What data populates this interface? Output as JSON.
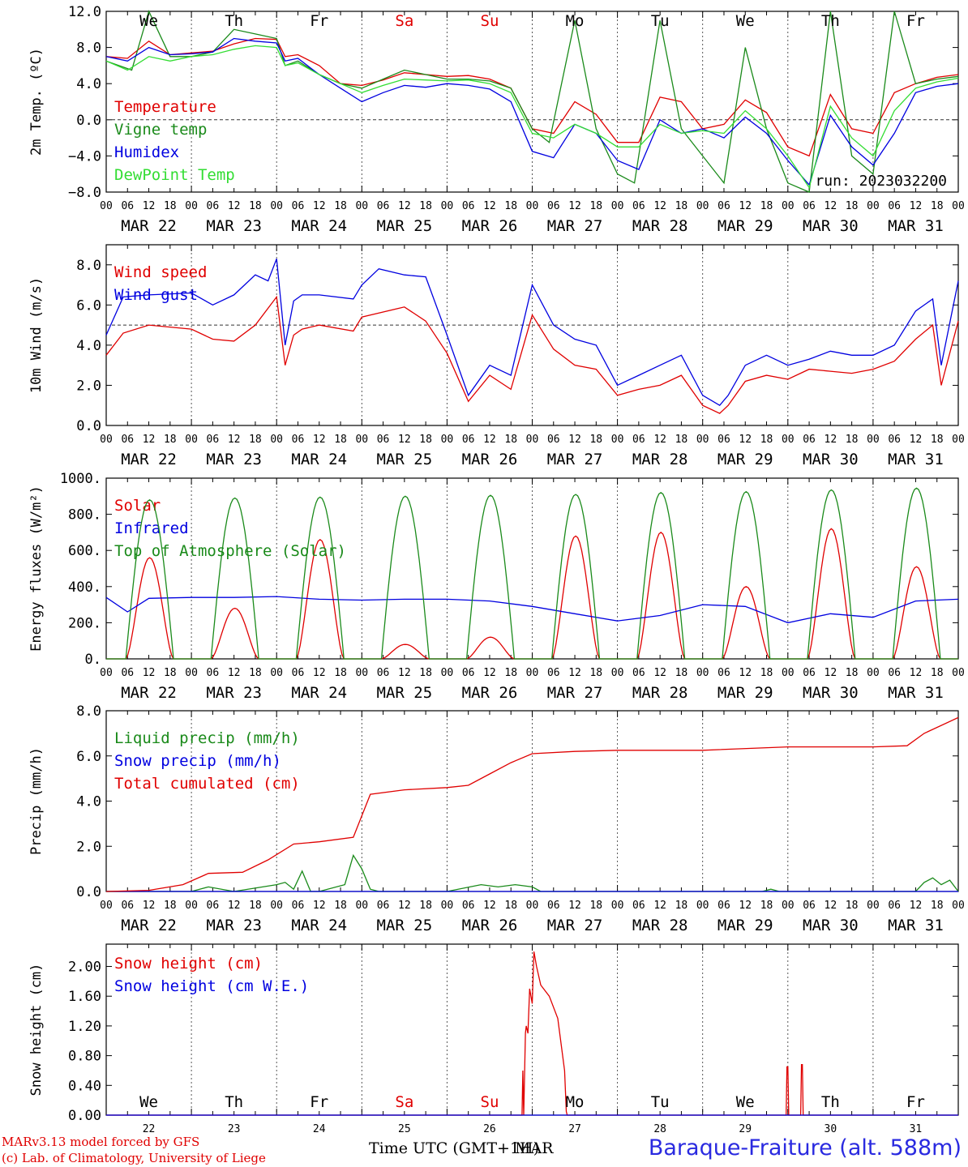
{
  "colors": {
    "red": "#e00000",
    "green": "#1a8a1a",
    "blue": "#0000e0",
    "lightgreen": "#33dd33",
    "weekend": "#e00000"
  },
  "days": [
    {
      "abbr": "We",
      "date": "MAR 22",
      "num": "22",
      "weekend": false
    },
    {
      "abbr": "Th",
      "date": "MAR 23",
      "num": "23",
      "weekend": false
    },
    {
      "abbr": "Fr",
      "date": "MAR 24",
      "num": "24",
      "weekend": false
    },
    {
      "abbr": "Sa",
      "date": "MAR 25",
      "num": "25",
      "weekend": true
    },
    {
      "abbr": "Su",
      "date": "MAR 26",
      "num": "26",
      "weekend": true
    },
    {
      "abbr": "Mo",
      "date": "MAR 27",
      "num": "27",
      "weekend": false
    },
    {
      "abbr": "Tu",
      "date": "MAR 28",
      "num": "28",
      "weekend": false
    },
    {
      "abbr": "We",
      "date": "MAR 29",
      "num": "29",
      "weekend": false
    },
    {
      "abbr": "Th",
      "date": "MAR 30",
      "num": "30",
      "weekend": false
    },
    {
      "abbr": "Fr",
      "date": "MAR 31",
      "num": "31",
      "weekend": false
    }
  ],
  "hour_ticks": [
    "00",
    "06",
    "12",
    "18"
  ],
  "chart_data": [
    {
      "type": "line",
      "ylabel": "2m Temp. (ºC)",
      "ylim": [
        -8,
        12
      ],
      "yticks": [
        "-8.0",
        "-4.0",
        "0.0",
        "4.0",
        "8.0",
        "12.0"
      ],
      "ref_line": 0,
      "x_unit": "days since MAR 22 00 UTC",
      "annotation": "run: 2023032200",
      "series": [
        {
          "name": "Temperature",
          "color": "red",
          "x": [
            0,
            0.25,
            0.5,
            0.75,
            1,
            1.25,
            1.5,
            1.75,
            2,
            2.1,
            2.25,
            2.5,
            2.75,
            3,
            3.25,
            3.5,
            3.75,
            4,
            4.25,
            4.5,
            4.75,
            5,
            5.25,
            5.5,
            5.75,
            6,
            6.25,
            6.5,
            6.75,
            7,
            7.25,
            7.5,
            7.75,
            8,
            8.25,
            8.5,
            8.75,
            9,
            9.25,
            9.5,
            9.75,
            10
          ],
          "y": [
            7,
            6.8,
            8.7,
            7.2,
            7.4,
            7.6,
            8.4,
            9,
            8.9,
            7,
            7.2,
            6,
            4,
            3.8,
            4.4,
            5.2,
            5,
            4.8,
            4.9,
            4.5,
            3.5,
            -1,
            -1.5,
            2,
            0.6,
            -2.5,
            -2.5,
            2.5,
            2,
            -1,
            -0.5,
            2.2,
            0.8,
            -3,
            -4,
            2.8,
            -1,
            -1.5,
            3,
            4,
            4.7,
            5
          ]
        },
        {
          "name": "Vigne temp",
          "color": "green",
          "x": [
            0,
            0.3,
            0.5,
            0.75,
            1,
            1.25,
            1.5,
            1.75,
            2,
            2.1,
            2.25,
            2.5,
            2.75,
            3,
            3.25,
            3.5,
            3.75,
            4,
            4.25,
            4.5,
            4.75,
            5,
            5.2,
            5.5,
            5.75,
            6,
            6.2,
            6.5,
            6.75,
            7,
            7.25,
            7.5,
            7.75,
            8,
            8.25,
            8.5,
            8.75,
            9,
            9.25,
            9.5,
            9.75,
            10
          ],
          "y": [
            6.5,
            5.5,
            12,
            7,
            7,
            7.5,
            10,
            9.5,
            9,
            6,
            6.5,
            5,
            4,
            3.5,
            4.5,
            5.5,
            5,
            4.5,
            4.5,
            4.3,
            3.5,
            -1,
            -2.5,
            11,
            -1,
            -6,
            -7,
            11,
            -1,
            -4,
            -7,
            8,
            -1,
            -7,
            -8,
            12,
            -4,
            -6,
            12,
            4,
            4.5,
            4.8
          ]
        },
        {
          "name": "Humidex",
          "color": "blue",
          "x": [
            0,
            0.25,
            0.5,
            0.75,
            1,
            1.25,
            1.5,
            1.75,
            2,
            2.1,
            2.25,
            2.5,
            2.75,
            3,
            3.25,
            3.5,
            3.75,
            4,
            4.25,
            4.5,
            4.75,
            5,
            5.25,
            5.5,
            5.75,
            6,
            6.25,
            6.5,
            6.75,
            7,
            7.25,
            7.5,
            7.75,
            8,
            8.25,
            8.5,
            8.75,
            9,
            9.25,
            9.5,
            9.75,
            10
          ],
          "y": [
            7,
            6.5,
            8,
            7.2,
            7.3,
            7.5,
            9,
            8.7,
            8.5,
            6.5,
            6.8,
            5,
            3.5,
            2,
            3,
            3.8,
            3.6,
            4,
            3.8,
            3.4,
            2,
            -3.5,
            -4.2,
            -0.5,
            -1.5,
            -4.5,
            -5.5,
            0,
            -1.5,
            -1,
            -2,
            0.3,
            -1.5,
            -4.5,
            -7.2,
            0.5,
            -3,
            -5,
            -1.5,
            3,
            3.7,
            4
          ]
        },
        {
          "name": "DewPoint Temp",
          "color": "lightgreen",
          "x": [
            0,
            0.25,
            0.5,
            0.75,
            1,
            1.25,
            1.5,
            1.75,
            2,
            2.1,
            2.25,
            2.5,
            2.75,
            3,
            3.25,
            3.5,
            3.75,
            4,
            4.25,
            4.5,
            4.75,
            5,
            5.25,
            5.5,
            5.75,
            6,
            6.25,
            6.5,
            6.75,
            7,
            7.25,
            7.5,
            7.75,
            8,
            8.25,
            8.5,
            8.75,
            9,
            9.25,
            9.5,
            9.75,
            10
          ],
          "y": [
            6.5,
            5.5,
            7,
            6.5,
            7,
            7.2,
            7.8,
            8.2,
            8,
            6,
            6.3,
            5,
            4,
            3,
            3.8,
            4.5,
            4.4,
            4.3,
            4.4,
            4,
            3,
            -1.5,
            -2,
            -0.5,
            -1.5,
            -3,
            -3,
            -0.5,
            -1.5,
            -1.2,
            -1.5,
            1,
            -1,
            -4,
            -7.5,
            1.5,
            -2,
            -4,
            1,
            3.5,
            4.2,
            4.6
          ]
        }
      ]
    },
    {
      "type": "line",
      "ylabel": "10m Wind (m/s)",
      "ylim": [
        0,
        9
      ],
      "yticks": [
        "0.0",
        "2.0",
        "4.0",
        "6.0",
        "8.0"
      ],
      "ref_line": 5,
      "series": [
        {
          "name": "Wind speed",
          "color": "red",
          "x": [
            0,
            0.2,
            0.5,
            1,
            1.25,
            1.5,
            1.75,
            2,
            2.1,
            2.2,
            2.3,
            2.5,
            2.9,
            3,
            3.2,
            3.5,
            3.75,
            4,
            4.25,
            4.5,
            4.75,
            5,
            5.25,
            5.5,
            5.75,
            6,
            6.25,
            6.5,
            6.75,
            7,
            7.2,
            7.3,
            7.5,
            7.75,
            8,
            8.25,
            8.5,
            8.75,
            9,
            9.25,
            9.5,
            9.7,
            9.8,
            10
          ],
          "y": [
            3.5,
            4.6,
            5,
            4.8,
            4.3,
            4.2,
            5,
            6.4,
            3,
            4.5,
            4.8,
            5,
            4.7,
            5.4,
            5.6,
            5.9,
            5.2,
            3.6,
            1.2,
            2.5,
            1.8,
            5.5,
            3.8,
            3,
            2.8,
            1.5,
            1.8,
            2,
            2.5,
            1,
            0.6,
            1,
            2.2,
            2.5,
            2.3,
            2.8,
            2.7,
            2.6,
            2.8,
            3.2,
            4.3,
            5,
            2,
            5.2
          ]
        },
        {
          "name": "Wind gust",
          "color": "blue",
          "x": [
            0,
            0.2,
            0.5,
            1,
            1.25,
            1.5,
            1.75,
            1.9,
            2,
            2.1,
            2.2,
            2.3,
            2.5,
            2.9,
            3,
            3.2,
            3.5,
            3.75,
            4,
            4.25,
            4.5,
            4.75,
            5,
            5.25,
            5.5,
            5.75,
            6,
            6.25,
            6.5,
            6.75,
            7,
            7.2,
            7.3,
            7.5,
            7.75,
            8,
            8.25,
            8.5,
            8.75,
            9,
            9.25,
            9.5,
            9.7,
            9.8,
            10
          ],
          "y": [
            4.5,
            6.4,
            6.5,
            6.6,
            6,
            6.5,
            7.5,
            7.2,
            8.3,
            4,
            6.2,
            6.5,
            6.5,
            6.3,
            7,
            7.8,
            7.5,
            7.4,
            4.5,
            1.5,
            3,
            2.5,
            7,
            5,
            4.3,
            4,
            2,
            2.5,
            3,
            3.5,
            1.5,
            1,
            1.5,
            3,
            3.5,
            3,
            3.3,
            3.7,
            3.5,
            3.5,
            4,
            5.7,
            6.3,
            3,
            7.2
          ]
        }
      ]
    },
    {
      "type": "line",
      "ylabel": "Energy fluxes (W/m²)",
      "ylim": [
        0,
        1000
      ],
      "yticks": [
        "0.",
        "200.",
        "400.",
        "600.",
        "800.",
        "1000."
      ],
      "series": [
        {
          "name": "Solar",
          "color": "red",
          "daily_peaks": [
            560,
            280,
            660,
            80,
            120,
            680,
            700,
            400,
            720,
            510
          ]
        },
        {
          "name": "Infrared",
          "color": "blue",
          "x": [
            0,
            0.25,
            0.5,
            1,
            1.5,
            2,
            2.5,
            3,
            3.5,
            4,
            4.5,
            5,
            5.5,
            6,
            6.5,
            7,
            7.5,
            8,
            8.5,
            9,
            9.5,
            10
          ],
          "y": [
            340,
            260,
            335,
            340,
            340,
            345,
            330,
            325,
            330,
            330,
            320,
            290,
            250,
            210,
            240,
            300,
            290,
            200,
            250,
            230,
            320,
            330
          ]
        },
        {
          "name": "Top of Atmosphere (Solar)",
          "color": "green",
          "daily_peaks": [
            880,
            890,
            895,
            900,
            905,
            910,
            920,
            925,
            935,
            945
          ]
        }
      ]
    },
    {
      "type": "line",
      "ylabel": "Precip (mm/h)",
      "ylim": [
        0,
        8
      ],
      "yticks": [
        "0.0",
        "2.0",
        "4.0",
        "6.0",
        "8.0"
      ],
      "series": [
        {
          "name": "Liquid precip (mm/h)",
          "color": "green",
          "x": [
            0,
            1,
            1.2,
            1.5,
            2,
            2.1,
            2.2,
            2.3,
            2.4,
            2.5,
            2.8,
            2.9,
            3,
            3.1,
            3.2,
            4,
            4.4,
            4.6,
            4.8,
            5,
            5.1,
            7.7,
            7.8,
            7.9,
            9.5,
            9.6,
            9.7,
            9.8,
            9.9,
            10
          ],
          "y": [
            0,
            0,
            0.2,
            0,
            0.3,
            0.4,
            0.1,
            0.9,
            0,
            0,
            0.3,
            1.6,
            1,
            0.1,
            0,
            0,
            0.3,
            0.2,
            0.3,
            0.2,
            0,
            0,
            0.1,
            0,
            0,
            0.4,
            0.6,
            0.3,
            0.5,
            0
          ]
        },
        {
          "name": "Snow precip (mm/h)",
          "color": "blue",
          "x": [
            0,
            10
          ],
          "y": [
            0,
            0
          ]
        },
        {
          "name": "Total cumulated (cm)",
          "color": "red",
          "x": [
            0,
            0.5,
            0.9,
            1.2,
            1.6,
            1.9,
            2.2,
            2.5,
            2.9,
            3.1,
            3.5,
            4,
            4.25,
            4.5,
            4.75,
            5,
            5.5,
            6,
            7,
            8,
            9,
            9.4,
            9.6,
            10
          ],
          "y": [
            0,
            0.05,
            0.3,
            0.8,
            0.85,
            1.4,
            2.1,
            2.2,
            2.4,
            4.3,
            4.5,
            4.6,
            4.7,
            5.2,
            5.7,
            6.1,
            6.2,
            6.25,
            6.25,
            6.4,
            6.4,
            6.45,
            7,
            7.7
          ]
        }
      ]
    },
    {
      "type": "line",
      "ylabel": "Snow height (cm)",
      "ylim": [
        0,
        2.3
      ],
      "yticks": [
        "0.00",
        "0.40",
        "0.80",
        "1.20",
        "1.60",
        "2.00"
      ],
      "series": [
        {
          "name": "Snow height (cm)",
          "color": "red",
          "x": [
            0,
            4.88,
            4.89,
            4.9,
            4.92,
            4.93,
            4.95,
            4.97,
            5,
            5.02,
            5.05,
            5.1,
            5.2,
            5.3,
            5.38,
            5.4,
            5.41,
            7.98,
            7.99,
            8,
            8.01,
            8.15,
            8.16,
            8.17,
            8.18,
            10
          ],
          "y": [
            0,
            0,
            0.6,
            0,
            1.1,
            1.2,
            1.1,
            1.7,
            1.5,
            2.2,
            2,
            1.75,
            1.6,
            1.3,
            0.6,
            0.05,
            0,
            0,
            0.65,
            0.65,
            0,
            0,
            0.68,
            0.68,
            0,
            0
          ]
        },
        {
          "name": "Snow height (cm W.E.)",
          "color": "blue",
          "x": [
            0,
            10
          ],
          "y": [
            0,
            0
          ]
        }
      ]
    }
  ],
  "footer": {
    "credit_1": "MARv3.13 model forced by GFS",
    "credit_2": "(c) Lab. of Climatology, University of Liege",
    "time_label": "Time UTC (GMT+1H)",
    "time_label_tz": "MAR",
    "station": "Baraque-Fraiture (alt. 588m)"
  }
}
